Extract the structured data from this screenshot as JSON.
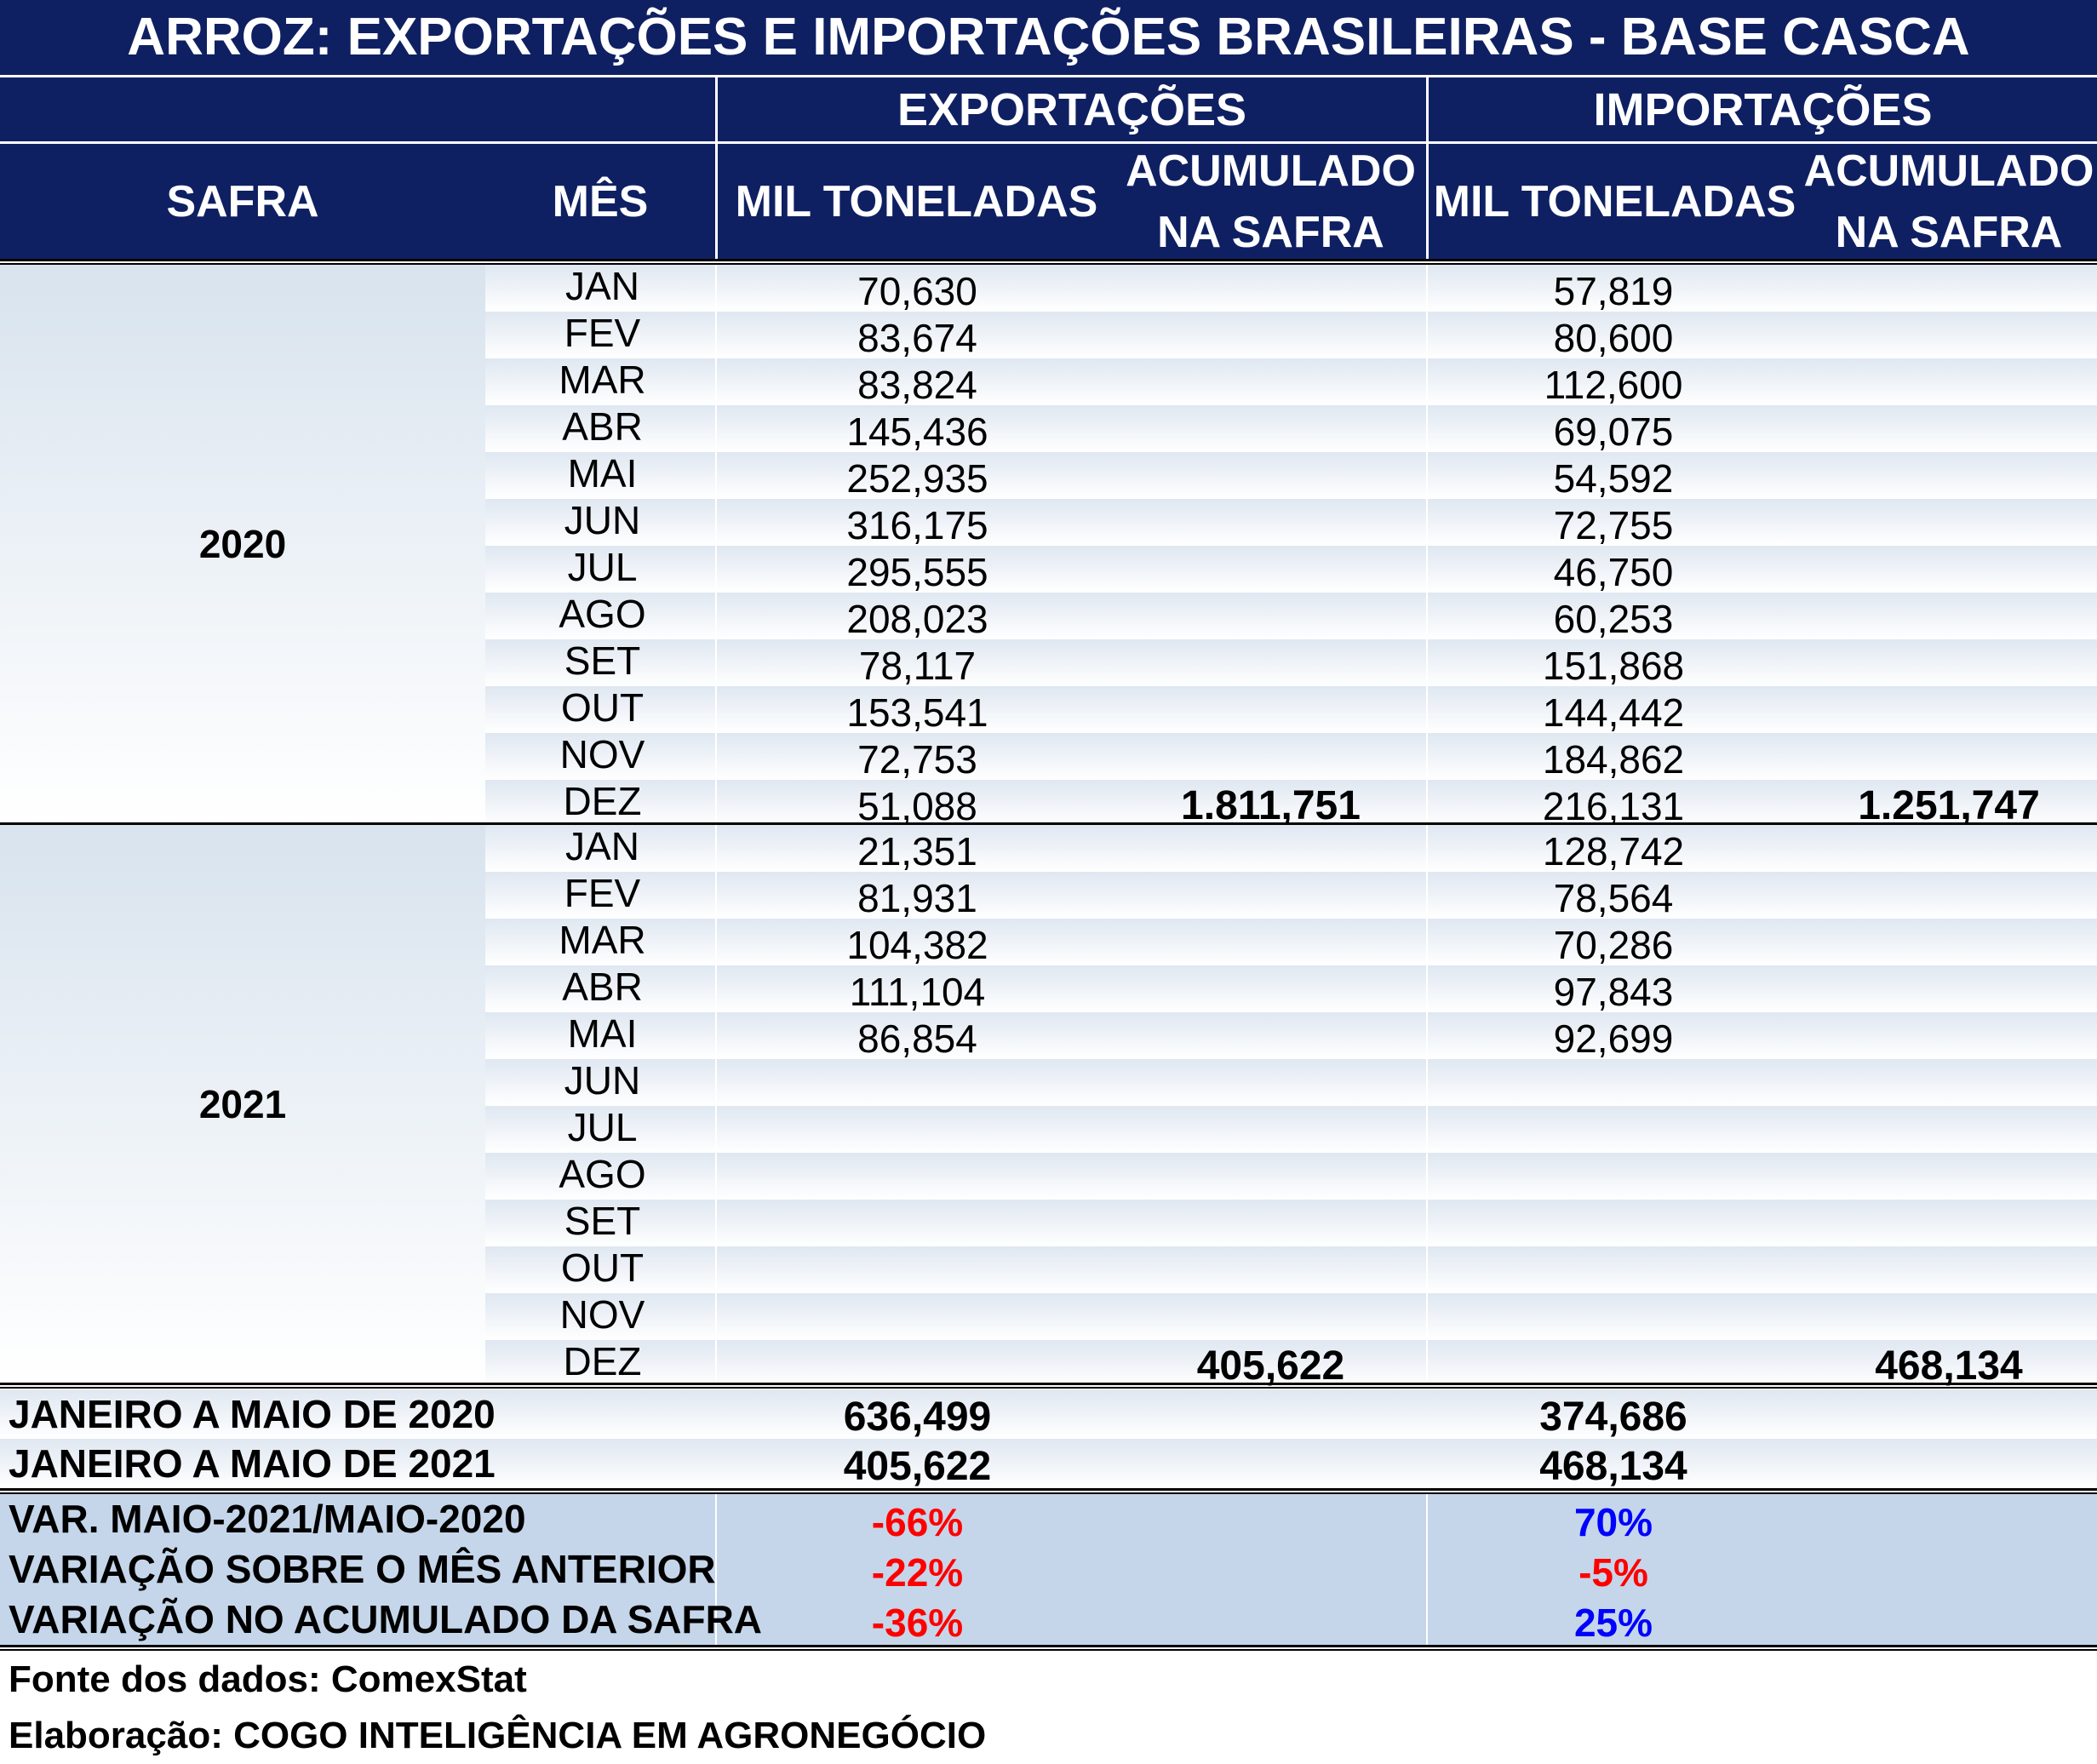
{
  "title": "ARROZ: EXPORTAÇÕES E IMPORTAÇÕES BRASILEIRAS - BASE CASCA",
  "header": {
    "group_exports": "EXPORTAÇÕES",
    "group_imports": "IMPORTAÇÕES",
    "col_safra": "SAFRA",
    "col_mes": "MÊS",
    "col_exp_mil_l1": "MIL TONELADAS",
    "col_exp_acc_l1": "ACUMULADO",
    "col_exp_acc_l2": "NA SAFRA",
    "col_imp_mil_l1": "MIL TONELADAS",
    "col_imp_acc_l1": "ACUMULADO",
    "col_imp_acc_l2": "NA SAFRA"
  },
  "safras": [
    {
      "year": "2020",
      "rows": [
        {
          "month": "JAN",
          "exp": "70,630",
          "imp": "57,819"
        },
        {
          "month": "FEV",
          "exp": "83,674",
          "imp": "80,600"
        },
        {
          "month": "MAR",
          "exp": "83,824",
          "imp": "112,600"
        },
        {
          "month": "ABR",
          "exp": "145,436",
          "imp": "69,075"
        },
        {
          "month": "MAI",
          "exp": "252,935",
          "imp": "54,592"
        },
        {
          "month": "JUN",
          "exp": "316,175",
          "imp": "72,755"
        },
        {
          "month": "JUL",
          "exp": "295,555",
          "imp": "46,750"
        },
        {
          "month": "AGO",
          "exp": "208,023",
          "imp": "60,253"
        },
        {
          "month": "SET",
          "exp": "78,117",
          "imp": "151,868"
        },
        {
          "month": "OUT",
          "exp": "153,541",
          "imp": "144,442"
        },
        {
          "month": "NOV",
          "exp": "72,753",
          "imp": "184,862"
        },
        {
          "month": "DEZ",
          "exp": "51,088",
          "imp": "216,131",
          "exp_acc": "1.811,751",
          "imp_acc": "1.251,747"
        }
      ]
    },
    {
      "year": "2021",
      "rows": [
        {
          "month": "JAN",
          "exp": "21,351",
          "imp": "128,742"
        },
        {
          "month": "FEV",
          "exp": "81,931",
          "imp": "78,564"
        },
        {
          "month": "MAR",
          "exp": "104,382",
          "imp": "70,286"
        },
        {
          "month": "ABR",
          "exp": "111,104",
          "imp": "97,843"
        },
        {
          "month": "MAI",
          "exp": "86,854",
          "imp": "92,699"
        },
        {
          "month": "JUN",
          "exp": "",
          "imp": ""
        },
        {
          "month": "JUL",
          "exp": "",
          "imp": ""
        },
        {
          "month": "AGO",
          "exp": "",
          "imp": ""
        },
        {
          "month": "SET",
          "exp": "",
          "imp": ""
        },
        {
          "month": "OUT",
          "exp": "",
          "imp": ""
        },
        {
          "month": "NOV",
          "exp": "",
          "imp": ""
        },
        {
          "month": "DEZ",
          "exp": "",
          "imp": "",
          "exp_acc": "405,622",
          "imp_acc": "468,134"
        }
      ]
    }
  ],
  "summary": [
    {
      "label": "JANEIRO A MAIO DE 2020",
      "exp": "636,499",
      "imp": "374,686"
    },
    {
      "label": "JANEIRO A MAIO DE 2021",
      "exp": "405,622",
      "imp": "468,134"
    }
  ],
  "variations": [
    {
      "label": "VAR. MAIO-2021/MAIO-2020",
      "exp": "-66%",
      "imp": "70%",
      "exp_color": "#ff0000",
      "imp_color": "#0000ff"
    },
    {
      "label": "VARIAÇÃO SOBRE O MÊS ANTERIOR",
      "exp": "-22%",
      "imp": "-5%",
      "exp_color": "#ff0000",
      "imp_color": "#ff0000"
    },
    {
      "label": "VARIAÇÃO NO ACUMULADO DA SAFRA",
      "exp": "-36%",
      "imp": "25%",
      "exp_color": "#ff0000",
      "imp_color": "#0000ff"
    }
  ],
  "footer": {
    "source": "Fonte dos dados: ComexStat",
    "elaboration": "Elaboração: COGO INTELIGÊNCIA EM AGRONEGÓCIO"
  },
  "colors": {
    "header_bg": "#0f2062",
    "variation_bg": "#c5d6ea",
    "negative": "#ff0000",
    "positive": "#0000ff"
  }
}
